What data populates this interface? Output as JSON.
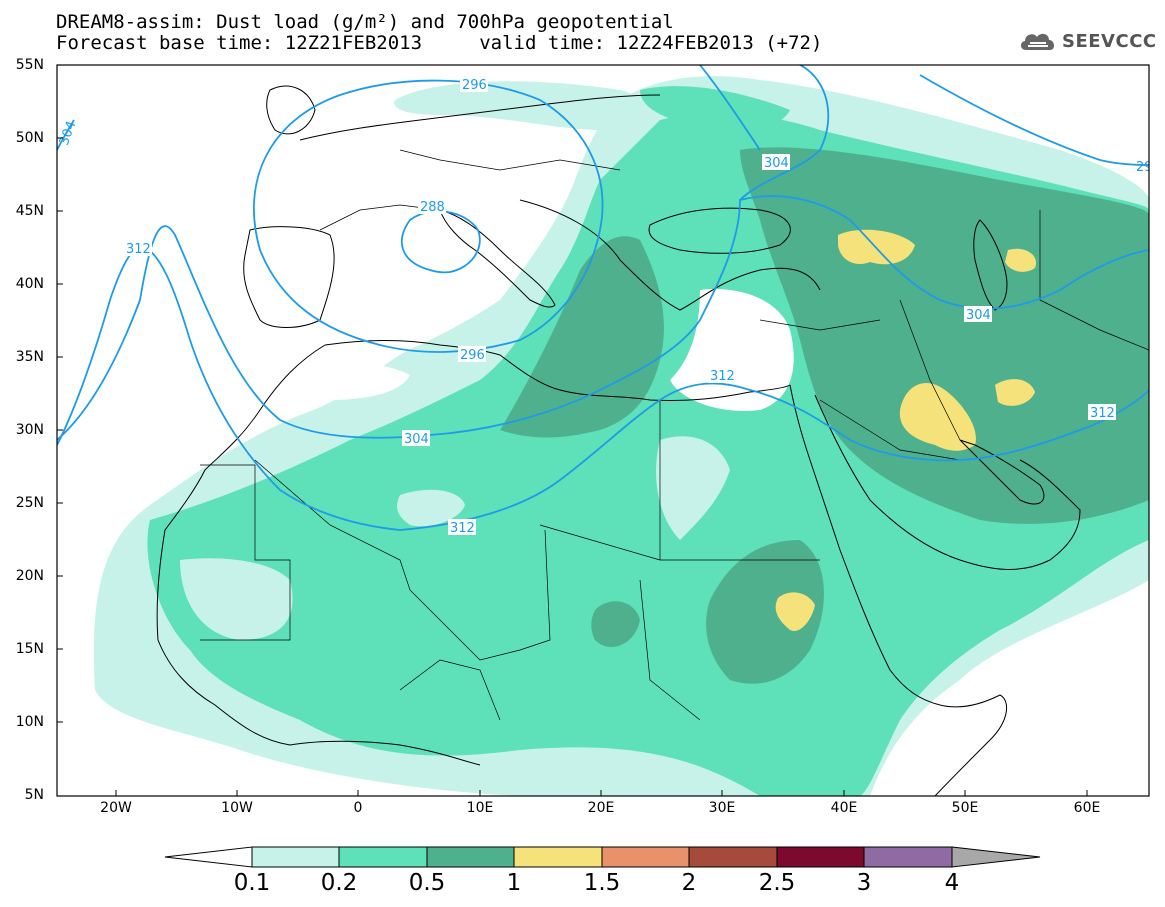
{
  "title": {
    "line1": "DREAM8-assim: Dust load (g/m²) and 700hPa geopotential",
    "line2": "Forecast base time: 12Z21FEB2013     valid time: 12Z24FEB2013 (+72)"
  },
  "logo": {
    "text": "SEEVCCC",
    "icon": "cloud-icon"
  },
  "colors": {
    "c0_1": "#c6f2e9",
    "c0_2": "#5ee0b8",
    "c0_5": "#4fb08e",
    "c1": "#f5e27a",
    "c1_5": "#e8916a",
    "c2": "#a64a3c",
    "c2_5": "#7b0a2e",
    "c3": "#8f6aa3",
    "c4": "#a8a8a8",
    "contour": "#1e9be8",
    "coast": "#000000"
  },
  "axes": {
    "lat_labels": [
      "55N",
      "50N",
      "45N",
      "40N",
      "35N",
      "30N",
      "25N",
      "20N",
      "15N",
      "10N",
      "5N"
    ],
    "lon_labels": [
      "20W",
      "10W",
      "0",
      "10E",
      "20E",
      "30E",
      "40E",
      "50E",
      "60E"
    ]
  },
  "contour_labels": [
    "304",
    "296",
    "288",
    "312",
    "296",
    "304",
    "312",
    "304",
    "304",
    "312",
    "312",
    "29"
  ],
  "colorbar": {
    "labels": [
      "0.1",
      "0.2",
      "0.5",
      "1",
      "1.5",
      "2",
      "2.5",
      "3",
      "4"
    ]
  }
}
